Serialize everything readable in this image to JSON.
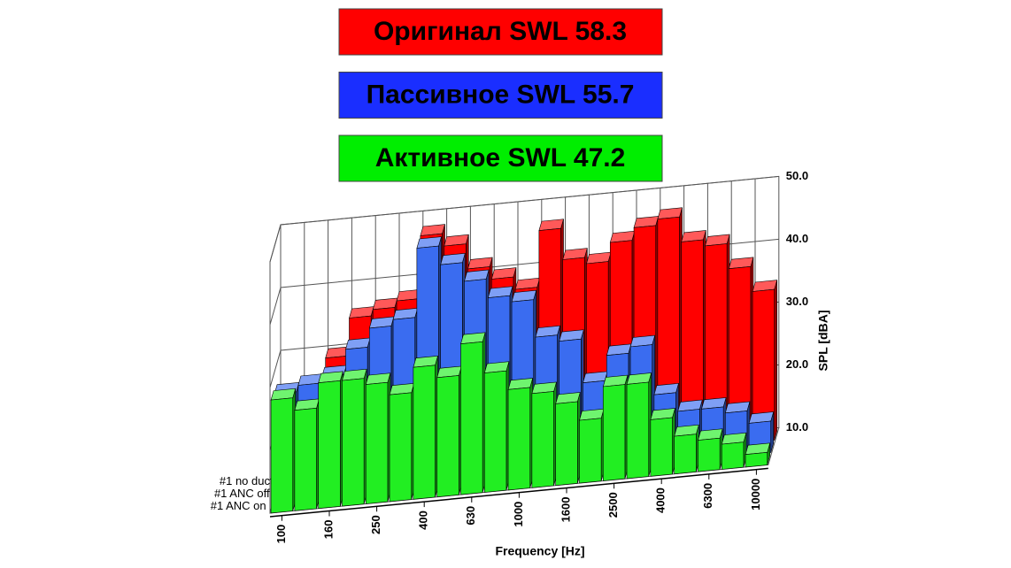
{
  "chart_data": {
    "type": "bar3d",
    "annotations": [
      {
        "text": "Оригинал SWL 58.3",
        "color": "#ff0000"
      },
      {
        "text": "Пассивное SWL 55.7",
        "color": "#1a2eff"
      },
      {
        "text": "Активное SWL 47.2",
        "color": "#00ee00"
      }
    ],
    "x_label": "Frequency [Hz]",
    "y_label": "SPL [dBA]",
    "categories": [
      "100",
      null,
      "160",
      null,
      "250",
      null,
      "400",
      null,
      "630",
      null,
      "1000",
      null,
      "1600",
      null,
      "2500",
      null,
      "4000",
      null,
      "6300",
      null,
      "10000"
    ],
    "series": [
      {
        "name": "#1 no duct",
        "color": "#ff0000",
        "values": [
          22,
          25,
          30,
          36,
          37,
          38,
          48,
          46,
          42,
          40,
          38,
          47,
          42,
          41,
          44,
          46,
          47,
          43,
          42,
          38,
          34
        ]
      },
      {
        "name": "#1 ANC off",
        "color": "#3a6cf0",
        "values": [
          27,
          28,
          29,
          33,
          36,
          37,
          48,
          45,
          42,
          39,
          38,
          32,
          31,
          24,
          28,
          29,
          21,
          18,
          18,
          17,
          15
        ]
      },
      {
        "name": "#1 ANC on",
        "color": "#22ee22",
        "values": [
          28,
          26,
          30,
          30,
          29,
          27,
          31,
          29,
          34,
          29,
          26,
          25,
          23,
          20,
          25,
          25,
          19,
          16,
          15,
          14,
          12
        ]
      }
    ],
    "ylim": [
      10,
      50
    ],
    "yticks": [
      {
        "value": 10,
        "label": "10.0"
      },
      {
        "value": 20,
        "label": "20.0"
      },
      {
        "value": 30,
        "label": "30.0"
      },
      {
        "value": 40,
        "label": "40.0"
      },
      {
        "value": 50,
        "label": "50.0"
      }
    ],
    "grid": true
  }
}
